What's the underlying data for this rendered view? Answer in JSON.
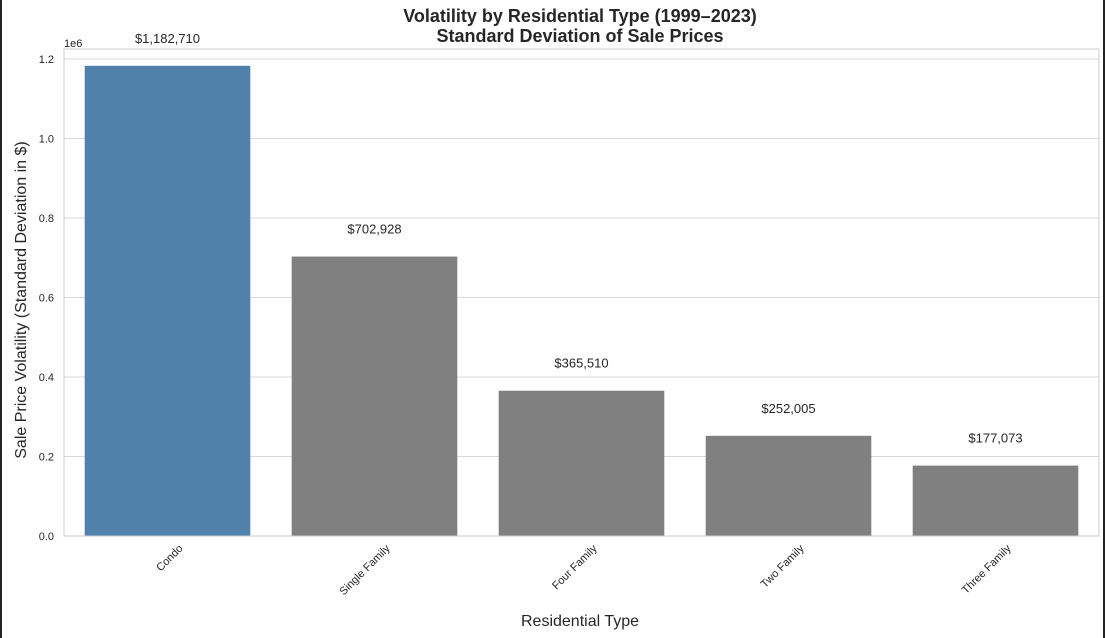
{
  "chart_data": {
    "type": "bar",
    "title": "Volatility by Residential Type (1999–2023)",
    "subtitle": "Standard Deviation of Sale Prices",
    "xlabel": "Residential Type",
    "ylabel": "Sale Price Volatility (Standard Deviation in $)",
    "axis_offset_label": "1e6",
    "categories": [
      "Condo",
      "Single Family",
      "Four Family",
      "Two Family",
      "Three Family"
    ],
    "values": [
      1182710,
      702928,
      365510,
      252005,
      177073
    ],
    "data_labels": [
      "$1,182,710",
      "$702,928",
      "$365,510",
      "$252,005",
      "$177,073"
    ],
    "y_ticks": [
      0.0,
      0.2,
      0.4,
      0.6,
      0.8,
      1.0,
      1.2
    ],
    "y_tick_labels": [
      "0.0",
      "0.2",
      "0.4",
      "0.6",
      "0.8",
      "1.0",
      "1.2"
    ],
    "ylim": [
      0,
      1225000
    ],
    "grid": true,
    "colors": {
      "highlight": "#4f81aa",
      "default": "#808080",
      "grid": "#d9d9d9",
      "spine": "#cccccc"
    },
    "highlight_index": 0
  }
}
